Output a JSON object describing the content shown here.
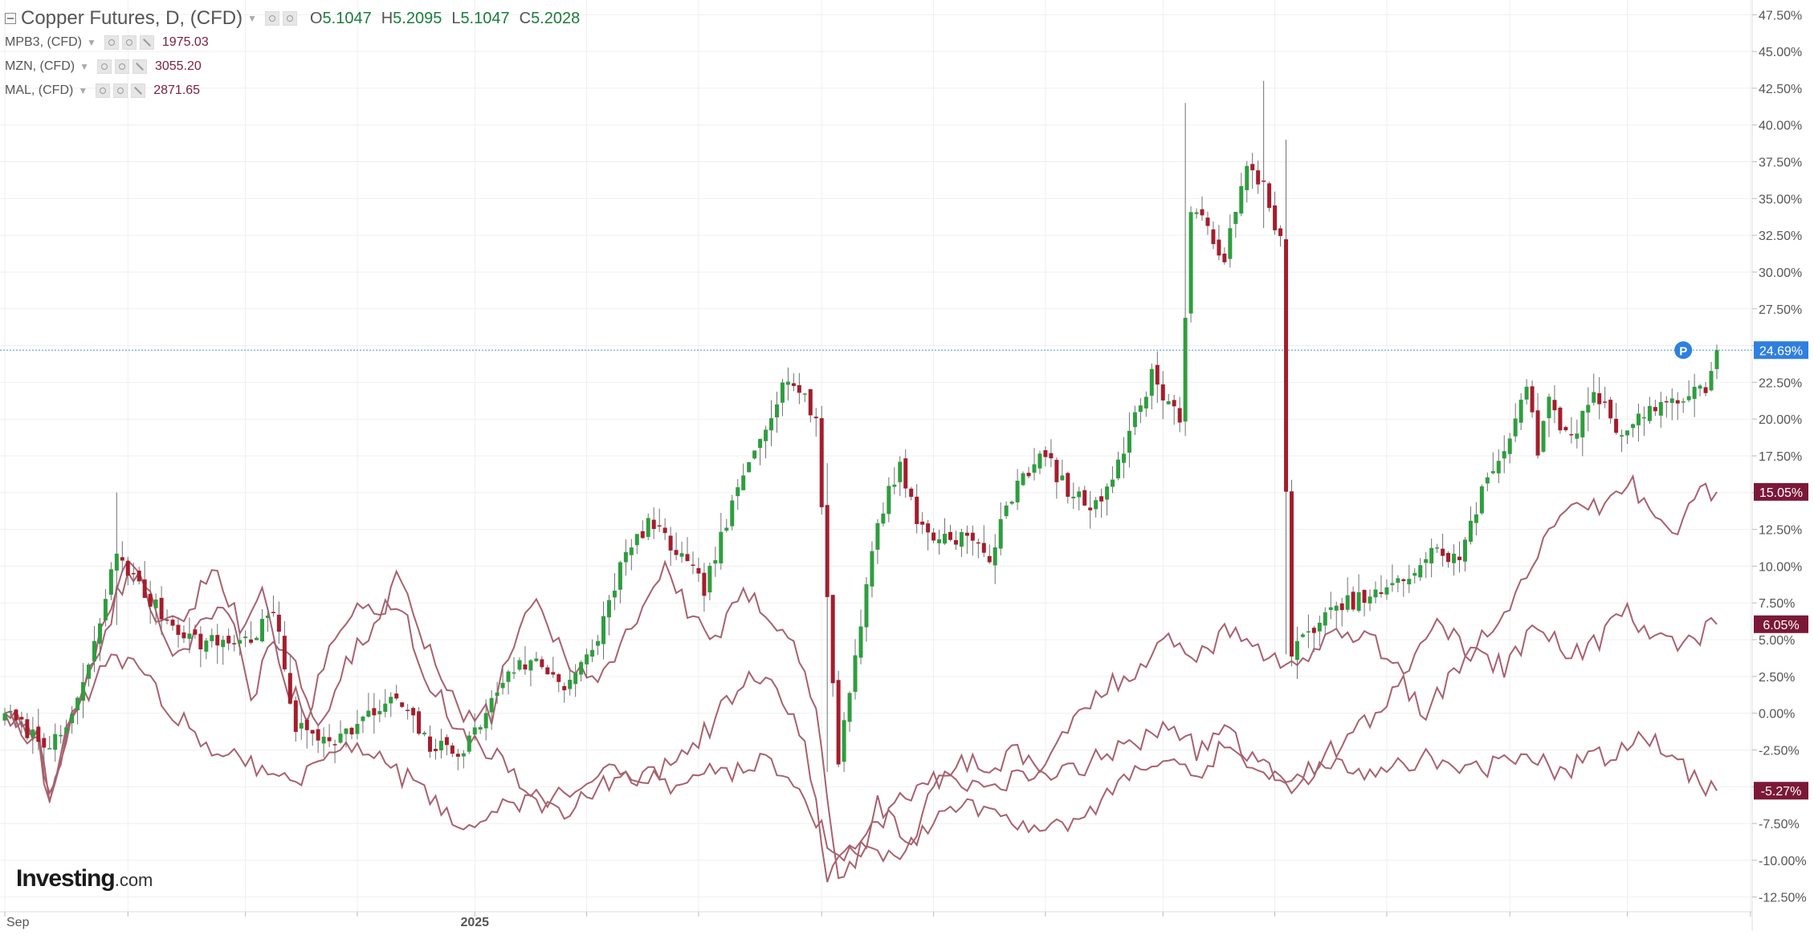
{
  "header": {
    "main_title": "Copper Futures, D, (CFD)",
    "ohlc": [
      {
        "label": "O",
        "value": "5.1047"
      },
      {
        "label": "H",
        "value": "5.2095"
      },
      {
        "label": "L",
        "value": "5.1047"
      },
      {
        "label": "C",
        "value": "5.2028"
      }
    ],
    "compare_series": [
      {
        "name": "MPB3, (CFD)",
        "value": "1975.03"
      },
      {
        "name": "MZN, (CFD)",
        "value": "3055.20"
      },
      {
        "name": "MAL, (CFD)",
        "value": "2871.65"
      }
    ]
  },
  "brand": {
    "name": "Investing",
    "suffix": ".com"
  },
  "colors": {
    "up": "#2e9e3e",
    "down": "#a51d2d",
    "compare_line": "#a8616e",
    "current_price_line": "#4a90e2",
    "current_badge": "#2f7fe0",
    "compare_badge": "#7b1838",
    "grid": "#efefef",
    "axis_text": "#555555"
  },
  "chart_data": {
    "type": "line",
    "title": "Copper Futures, D, (CFD)",
    "y_axis": {
      "unit": "percent change",
      "ylim": [
        -13.5,
        48.5
      ],
      "ticks": [
        47.5,
        45,
        42.5,
        40,
        37.5,
        35,
        32.5,
        30,
        27.5,
        25,
        22.5,
        20,
        17.5,
        15,
        12.5,
        10,
        7.5,
        5,
        2.5,
        0,
        -2.5,
        -5,
        -7.5,
        -10,
        -12.5
      ],
      "tick_labels": [
        "47.50%",
        "45.00%",
        "42.50%",
        "40.00%",
        "37.50%",
        "35.00%",
        "32.50%",
        "30.00%",
        "27.50%",
        "25.00%",
        "22.50%",
        "20.00%",
        "17.50%",
        "15.00%",
        "12.50%",
        "10.00%",
        "7.50%",
        "5.00%",
        "2.50%",
        "0.00%",
        "-2.50%",
        "-5.00%",
        "-7.50%",
        "-10.00%",
        "-12.50%"
      ]
    },
    "x_axis": {
      "tick_labels": [
        {
          "i": 0,
          "label": "Sep"
        },
        {
          "i": 84,
          "label": "2025"
        }
      ],
      "grid_indices": [
        0,
        22,
        43,
        63,
        84,
        104,
        124,
        146,
        166,
        186,
        207,
        227,
        247,
        269,
        290,
        312
      ]
    },
    "main_series": {
      "name": "Copper Futures",
      "style": "candlestick",
      "keyframes": [
        [
          0,
          0
        ],
        [
          6,
          -1.8
        ],
        [
          10,
          -2
        ],
        [
          15,
          3
        ],
        [
          20,
          11
        ],
        [
          25,
          8
        ],
        [
          30,
          6
        ],
        [
          35,
          4.8
        ],
        [
          44,
          5
        ],
        [
          48,
          7
        ],
        [
          52,
          -1
        ],
        [
          56,
          -1.5
        ],
        [
          60,
          -1.6
        ],
        [
          64,
          -0.5
        ],
        [
          70,
          1
        ],
        [
          76,
          -2.3
        ],
        [
          82,
          -2.5
        ],
        [
          86,
          0
        ],
        [
          90,
          3
        ],
        [
          95,
          3.5
        ],
        [
          100,
          2
        ],
        [
          105,
          4
        ],
        [
          110,
          10
        ],
        [
          115,
          13
        ],
        [
          120,
          11
        ],
        [
          125,
          8.5
        ],
        [
          130,
          14
        ],
        [
          135,
          19
        ],
        [
          140,
          23
        ],
        [
          145,
          20
        ],
        [
          146,
          14
        ],
        [
          148,
          2
        ],
        [
          149,
          -3
        ],
        [
          152,
          4
        ],
        [
          156,
          13
        ],
        [
          160,
          17
        ],
        [
          163,
          13
        ],
        [
          166,
          12
        ],
        [
          172,
          12
        ],
        [
          176,
          10.5
        ],
        [
          181,
          16
        ],
        [
          186,
          17.5
        ],
        [
          190,
          15
        ],
        [
          195,
          14
        ],
        [
          200,
          18
        ],
        [
          205,
          23
        ],
        [
          210,
          20
        ],
        [
          212,
          34
        ],
        [
          215,
          33
        ],
        [
          218,
          31
        ],
        [
          222,
          37
        ],
        [
          225,
          36
        ],
        [
          228,
          32
        ],
        [
          229,
          15
        ],
        [
          230,
          4
        ],
        [
          234,
          6
        ],
        [
          240,
          7.5
        ],
        [
          245,
          8
        ],
        [
          250,
          9
        ],
        [
          255,
          11
        ],
        [
          260,
          10.5
        ],
        [
          264,
          15
        ],
        [
          268,
          18
        ],
        [
          272,
          22.5
        ],
        [
          274,
          18
        ],
        [
          276,
          21
        ],
        [
          280,
          18.5
        ],
        [
          284,
          22
        ],
        [
          289,
          19
        ],
        [
          295,
          21
        ],
        [
          300,
          21.5
        ],
        [
          304,
          22
        ],
        [
          306,
          24.69
        ]
      ],
      "last_value": 24.69,
      "last_label": "24.69%"
    },
    "compare_series": [
      {
        "name": "MPB3, (CFD)",
        "keyframes": [
          [
            0,
            0
          ],
          [
            6,
            -1.5
          ],
          [
            8,
            -6
          ],
          [
            12,
            0
          ],
          [
            16,
            4
          ],
          [
            22,
            11
          ],
          [
            26,
            7
          ],
          [
            32,
            6
          ],
          [
            37,
            10.2
          ],
          [
            42,
            6
          ],
          [
            46,
            9
          ],
          [
            50,
            2
          ],
          [
            54,
            0
          ],
          [
            58,
            4
          ],
          [
            63,
            8
          ],
          [
            67,
            6
          ],
          [
            70,
            9
          ],
          [
            74,
            6
          ],
          [
            78,
            2
          ],
          [
            83,
            -0.5
          ],
          [
            87,
            0
          ],
          [
            90,
            4
          ],
          [
            95,
            7.5
          ],
          [
            100,
            4
          ],
          [
            106,
            2
          ],
          [
            112,
            6
          ],
          [
            118,
            10
          ],
          [
            122,
            7
          ],
          [
            127,
            5
          ],
          [
            132,
            8
          ],
          [
            136,
            7
          ],
          [
            141,
            5
          ],
          [
            145,
            0
          ],
          [
            149,
            -11
          ],
          [
            152,
            -10.5
          ],
          [
            156,
            -6
          ],
          [
            162,
            -9
          ],
          [
            166,
            -5
          ],
          [
            171,
            -3
          ],
          [
            176,
            -4
          ],
          [
            180,
            -2.5
          ],
          [
            186,
            -4
          ],
          [
            190,
            -1
          ],
          [
            196,
            1.5
          ],
          [
            202,
            3
          ],
          [
            208,
            5
          ],
          [
            214,
            4
          ],
          [
            220,
            6
          ],
          [
            225,
            4
          ],
          [
            229,
            3.5
          ],
          [
            232,
            3
          ],
          [
            238,
            6
          ],
          [
            244,
            5
          ],
          [
            250,
            3
          ],
          [
            256,
            6
          ],
          [
            262,
            4
          ],
          [
            268,
            7
          ],
          [
            274,
            11
          ],
          [
            280,
            14
          ],
          [
            286,
            14
          ],
          [
            290,
            16
          ],
          [
            294,
            14
          ],
          [
            298,
            12
          ],
          [
            302,
            15
          ],
          [
            306,
            15.05
          ]
        ],
        "last_value": 15.05,
        "last_label": "15.05%"
      },
      {
        "name": "MZN, (CFD)",
        "keyframes": [
          [
            0,
            0
          ],
          [
            6,
            -2
          ],
          [
            8,
            -6.3
          ],
          [
            12,
            0
          ],
          [
            16,
            3
          ],
          [
            20,
            8
          ],
          [
            24,
            10
          ],
          [
            30,
            4
          ],
          [
            36,
            6
          ],
          [
            40,
            7
          ],
          [
            44,
            1
          ],
          [
            48,
            5
          ],
          [
            52,
            3
          ],
          [
            56,
            -1
          ],
          [
            62,
            4
          ],
          [
            68,
            7
          ],
          [
            72,
            6
          ],
          [
            76,
            2
          ],
          [
            82,
            -1.5
          ],
          [
            88,
            -3
          ],
          [
            92,
            -5
          ],
          [
            97,
            -5.8
          ],
          [
            102,
            -5
          ],
          [
            108,
            -4
          ],
          [
            114,
            -4.5
          ],
          [
            120,
            -3
          ],
          [
            126,
            -1
          ],
          [
            132,
            2.5
          ],
          [
            138,
            1.5
          ],
          [
            143,
            -2
          ],
          [
            147,
            -11
          ],
          [
            150,
            -10
          ],
          [
            155,
            -8
          ],
          [
            160,
            -6
          ],
          [
            166,
            -4.5
          ],
          [
            171,
            -5
          ],
          [
            176,
            -5
          ],
          [
            182,
            -4.5
          ],
          [
            190,
            -4
          ],
          [
            196,
            -3
          ],
          [
            202,
            -2
          ],
          [
            208,
            -0.5
          ],
          [
            213,
            -2.5
          ],
          [
            218,
            -1
          ],
          [
            222,
            -3
          ],
          [
            226,
            -4
          ],
          [
            230,
            -5
          ],
          [
            235,
            -3
          ],
          [
            240,
            -2
          ],
          [
            245,
            0
          ],
          [
            250,
            2
          ],
          [
            254,
            0
          ],
          [
            258,
            2
          ],
          [
            262,
            4.5
          ],
          [
            268,
            3
          ],
          [
            274,
            6
          ],
          [
            280,
            4
          ],
          [
            285,
            5
          ],
          [
            290,
            7
          ],
          [
            294,
            5.5
          ],
          [
            298,
            4.5
          ],
          [
            302,
            5
          ],
          [
            306,
            6.05
          ]
        ],
        "last_value": 6.05,
        "last_label": "6.05%"
      },
      {
        "name": "MAL, (CFD)",
        "keyframes": [
          [
            0,
            0
          ],
          [
            6,
            -2
          ],
          [
            8,
            -6.1
          ],
          [
            12,
            0
          ],
          [
            16,
            2
          ],
          [
            20,
            4
          ],
          [
            24,
            3
          ],
          [
            30,
            0
          ],
          [
            36,
            -2
          ],
          [
            42,
            -3
          ],
          [
            48,
            -4
          ],
          [
            52,
            -5
          ],
          [
            56,
            -3
          ],
          [
            62,
            -2
          ],
          [
            68,
            -3.5
          ],
          [
            72,
            -4.5
          ],
          [
            76,
            -6
          ],
          [
            82,
            -7.8
          ],
          [
            88,
            -6.5
          ],
          [
            94,
            -6
          ],
          [
            100,
            -7
          ],
          [
            106,
            -5
          ],
          [
            112,
            -4
          ],
          [
            118,
            -5
          ],
          [
            124,
            -4
          ],
          [
            130,
            -4
          ],
          [
            136,
            -3
          ],
          [
            142,
            -5
          ],
          [
            146,
            -8
          ],
          [
            150,
            -10
          ],
          [
            154,
            -9
          ],
          [
            160,
            -10
          ],
          [
            166,
            -7
          ],
          [
            172,
            -6
          ],
          [
            178,
            -7
          ],
          [
            184,
            -7.5
          ],
          [
            190,
            -8
          ],
          [
            196,
            -6
          ],
          [
            202,
            -4
          ],
          [
            208,
            -3
          ],
          [
            213,
            -5
          ],
          [
            218,
            -2
          ],
          [
            224,
            -4
          ],
          [
            230,
            -5
          ],
          [
            236,
            -3.5
          ],
          [
            242,
            -4
          ],
          [
            248,
            -3.5
          ],
          [
            254,
            -3
          ],
          [
            260,
            -4
          ],
          [
            266,
            -3.5
          ],
          [
            272,
            -3
          ],
          [
            278,
            -4
          ],
          [
            284,
            -3
          ],
          [
            290,
            -2.5
          ],
          [
            294,
            -1.5
          ],
          [
            298,
            -2.5
          ],
          [
            302,
            -4.5
          ],
          [
            306,
            -5.27
          ]
        ],
        "last_value": -5.27,
        "last_label": "-5.27%"
      }
    ],
    "markers": [
      {
        "label": "P",
        "at_index": 300,
        "value": 24.69
      }
    ]
  }
}
